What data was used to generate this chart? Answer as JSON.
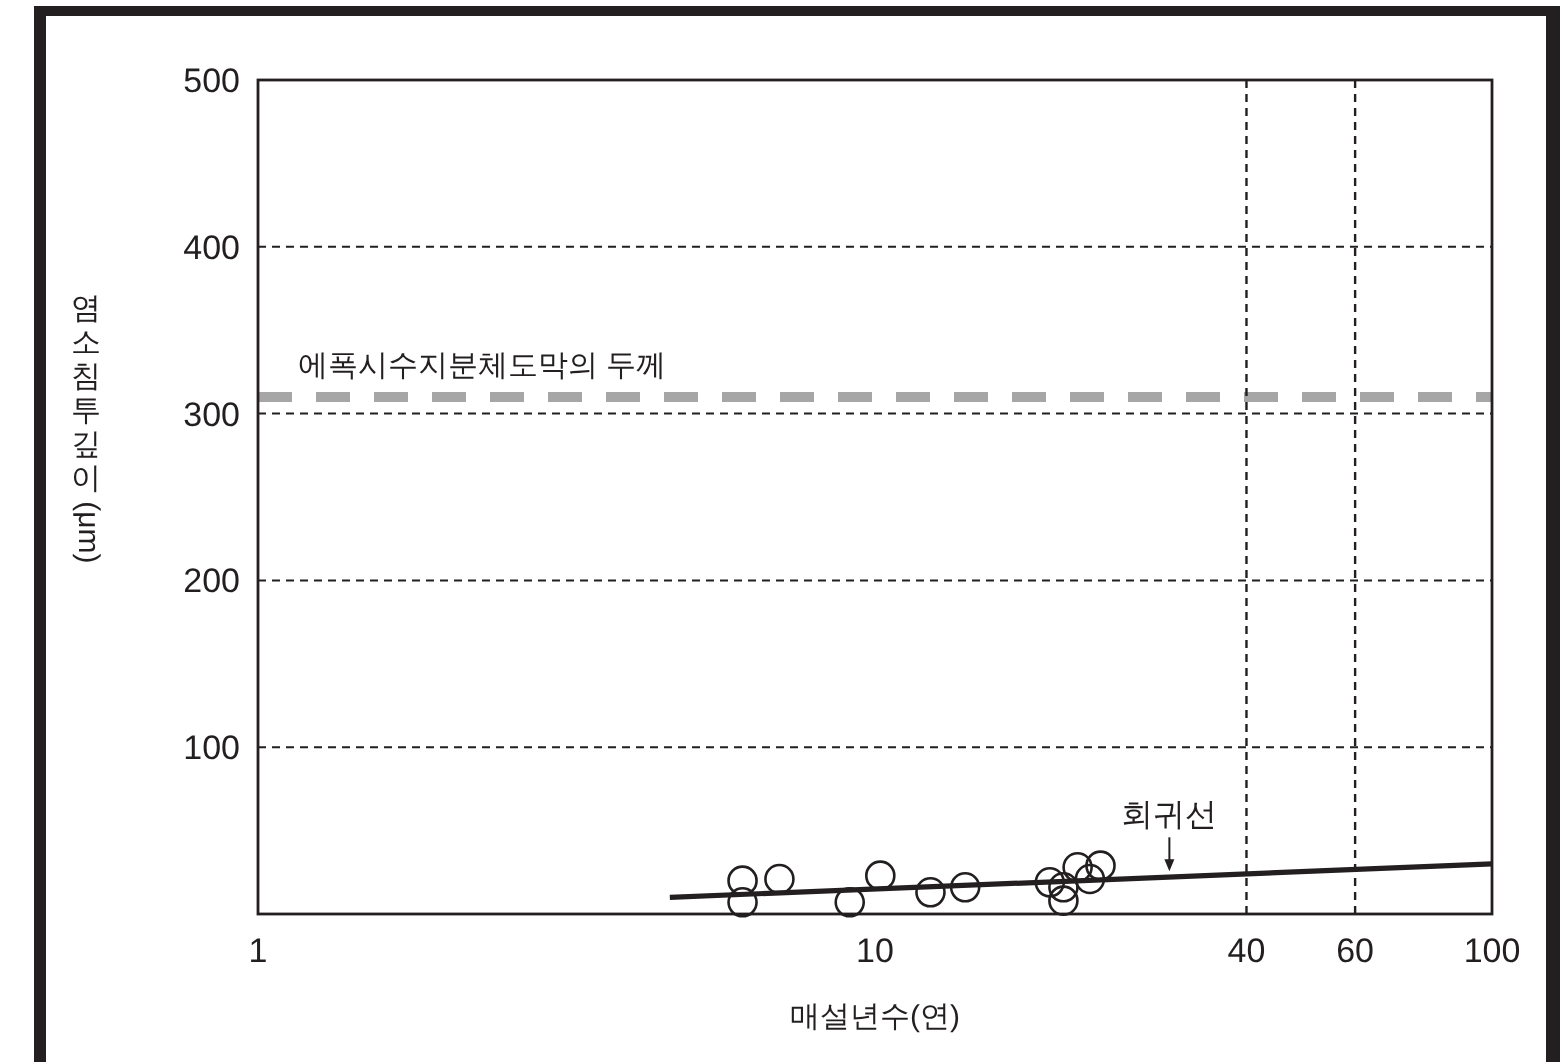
{
  "chart_data": {
    "type": "scatter",
    "xlabel": "매설년수(연)",
    "ylabel": "염소침투깊이(μm)",
    "log": "x",
    "xlim": [
      1,
      100
    ],
    "xticks": [
      1,
      10,
      40,
      60,
      100
    ],
    "ylim": [
      0,
      500
    ],
    "yticks": [
      100,
      200,
      300,
      400,
      500
    ],
    "grid": "y",
    "series": [
      {
        "marker": "circle",
        "color": "#231f20",
        "x": [
          6.1,
          6.1,
          7.0,
          9.1,
          10.2,
          12.3,
          14.0,
          19.2,
          20.2,
          20.2,
          21.3,
          22.3,
          23.2
        ],
        "values": [
          20,
          7,
          21,
          7,
          23,
          13,
          16,
          19,
          16,
          8,
          28,
          21,
          29
        ]
      },
      {
        "type": "line",
        "color": "#231f20",
        "x": [
          4.65,
          100
        ],
        "values": [
          10,
          30
        ]
      }
    ],
    "ref_lines": [
      {
        "axis": "y",
        "value": 310,
        "label": "에폭시수지분체도막의 두께",
        "color": "#a6a6a6",
        "line_style": "dashed"
      },
      {
        "axis": "x",
        "value": 40,
        "color": "#231f20",
        "line_style": "dashed"
      },
      {
        "axis": "x",
        "value": 60,
        "color": "#231f20",
        "line_style": "dashed"
      }
    ],
    "annotations": [
      {
        "text": "회귀선",
        "x": 30,
        "y": 22
      }
    ]
  }
}
